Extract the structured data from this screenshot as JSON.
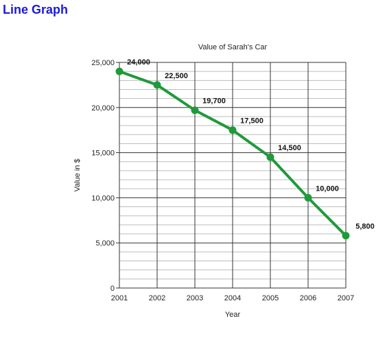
{
  "page": {
    "heading": "Line Graph"
  },
  "colors": {
    "heading": "#1a1adb",
    "line": "#1f9a3a",
    "grid_major": "#333333",
    "grid_minor": "#bdbdbd"
  },
  "chart_data": {
    "type": "line",
    "title": "Value of Sarah's Car",
    "xlabel": "Year",
    "ylabel": "Value in $",
    "x": [
      "2001",
      "2002",
      "2003",
      "2004",
      "2005",
      "2006",
      "2007"
    ],
    "series": [
      {
        "values": [
          24000,
          22500,
          19700,
          17500,
          14500,
          10000,
          5800
        ]
      }
    ],
    "data_labels": [
      "24,000",
      "22,500",
      "19,700",
      "17,500",
      "14,500",
      "10,000",
      "5,800"
    ],
    "ylim": [
      0,
      25000
    ],
    "yticks": [
      0,
      5000,
      10000,
      15000,
      20000,
      25000
    ],
    "ytick_labels": [
      "0",
      "5,000",
      "10,000",
      "15,000",
      "20,000",
      "25,000"
    ],
    "minor_y_step": 1000,
    "grid": true
  }
}
